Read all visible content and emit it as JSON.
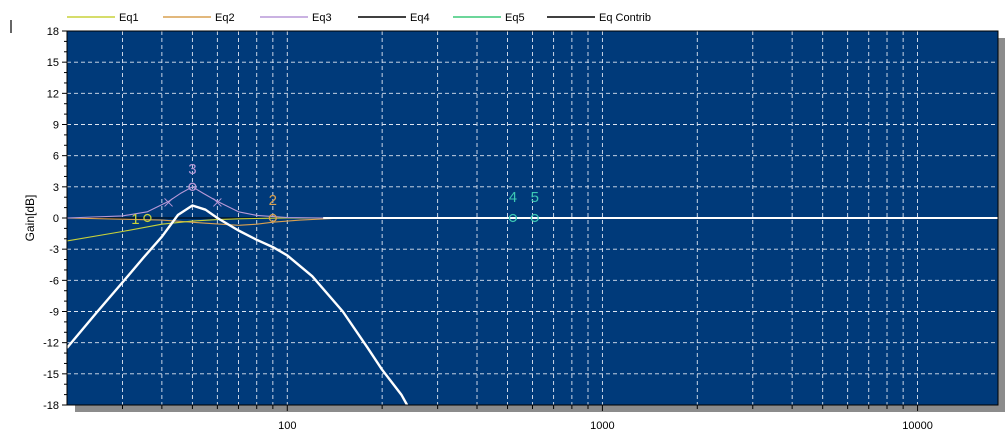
{
  "chart_data": {
    "type": "line",
    "ylabel": "Gain[dB]",
    "xscale": "log",
    "xlim": [
      20,
      18000
    ],
    "ylim": [
      -18,
      18
    ],
    "y_ticks": [
      18,
      15,
      12,
      9,
      6,
      3,
      0,
      -3,
      -6,
      -9,
      -12,
      -15,
      -18
    ],
    "x_tick_labels": [
      {
        "value": 100,
        "label": "100"
      },
      {
        "value": 1000,
        "label": "1000"
      },
      {
        "value": 10000,
        "label": "10000"
      }
    ],
    "grid": true,
    "legend_placement": "top",
    "colors": {
      "plot_background": "#003a7a",
      "grid": "#dfe6f2",
      "shadow": "#8c8c8c",
      "frame": "#000000"
    },
    "series": [
      {
        "name": "Eq1",
        "color": "#c8d23a",
        "points": [
          [
            20,
            -2.2
          ],
          [
            30,
            -1.3
          ],
          [
            40,
            -0.6
          ],
          [
            50,
            -0.3
          ],
          [
            60,
            -0.15
          ],
          [
            70,
            -0.08
          ],
          [
            85,
            -0.03
          ],
          [
            100,
            0
          ],
          [
            200,
            0
          ],
          [
            1000,
            0
          ],
          [
            18000,
            0
          ]
        ]
      },
      {
        "name": "Eq2",
        "color": "#d8a050",
        "points": [
          [
            20,
            0
          ],
          [
            40,
            -0.2
          ],
          [
            55,
            -0.5
          ],
          [
            70,
            -0.7
          ],
          [
            80,
            -0.6
          ],
          [
            90,
            -0.4
          ],
          [
            110,
            -0.2
          ],
          [
            140,
            -0.05
          ],
          [
            200,
            0
          ],
          [
            18000,
            0
          ]
        ]
      },
      {
        "name": "Eq3",
        "color": "#b899d8",
        "points": [
          [
            20,
            0
          ],
          [
            30,
            0.2
          ],
          [
            36,
            0.6
          ],
          [
            42,
            1.6
          ],
          [
            46,
            2.4
          ],
          [
            50,
            3
          ],
          [
            54,
            2.4
          ],
          [
            60,
            1.6
          ],
          [
            70,
            0.6
          ],
          [
            80,
            0.25
          ],
          [
            100,
            0.05
          ],
          [
            130,
            0
          ],
          [
            18000,
            0
          ]
        ]
      },
      {
        "name": "Eq4",
        "color": "#000000",
        "points": [
          [
            20,
            0
          ],
          [
            18000,
            0
          ]
        ]
      },
      {
        "name": "Eq5",
        "color": "#3cc878",
        "points": [
          [
            20,
            0
          ],
          [
            18000,
            0
          ]
        ]
      },
      {
        "name": "Eq Contrib",
        "color": "#ffffff",
        "points": [
          [
            20,
            -12.5
          ],
          [
            25,
            -9
          ],
          [
            30,
            -6.2
          ],
          [
            35,
            -3.8
          ],
          [
            40,
            -1.8
          ],
          [
            45,
            0.3
          ],
          [
            50,
            1.2
          ],
          [
            55,
            0.8
          ],
          [
            60,
            0
          ],
          [
            70,
            -1.2
          ],
          [
            80,
            -2.1
          ],
          [
            90,
            -2.8
          ],
          [
            100,
            -3.6
          ],
          [
            120,
            -5.6
          ],
          [
            150,
            -9.0
          ],
          [
            180,
            -12.5
          ],
          [
            200,
            -14.6
          ],
          [
            230,
            -17.0
          ],
          [
            240,
            -18
          ]
        ]
      }
    ],
    "markers": [
      {
        "label": "1",
        "x": 36,
        "y": 0,
        "color": "#c8d23a"
      },
      {
        "label": "2",
        "x": 90,
        "y": 0,
        "color": "#d8a050"
      },
      {
        "label": "3",
        "x": 50,
        "y": 3,
        "color": "#b899d8"
      },
      {
        "label": "4",
        "x": 520,
        "y": 0,
        "color": "#3cc8b4"
      },
      {
        "label": "5",
        "x": 610,
        "y": 0,
        "color": "#3cc8b4"
      }
    ],
    "bw_handles": {
      "x": [
        42,
        60
      ],
      "y": 1.5,
      "color": "#b899d8"
    },
    "zero_line": {
      "y": 0,
      "x_from": 130,
      "x_to": 18000,
      "color": "#ffffff"
    }
  }
}
